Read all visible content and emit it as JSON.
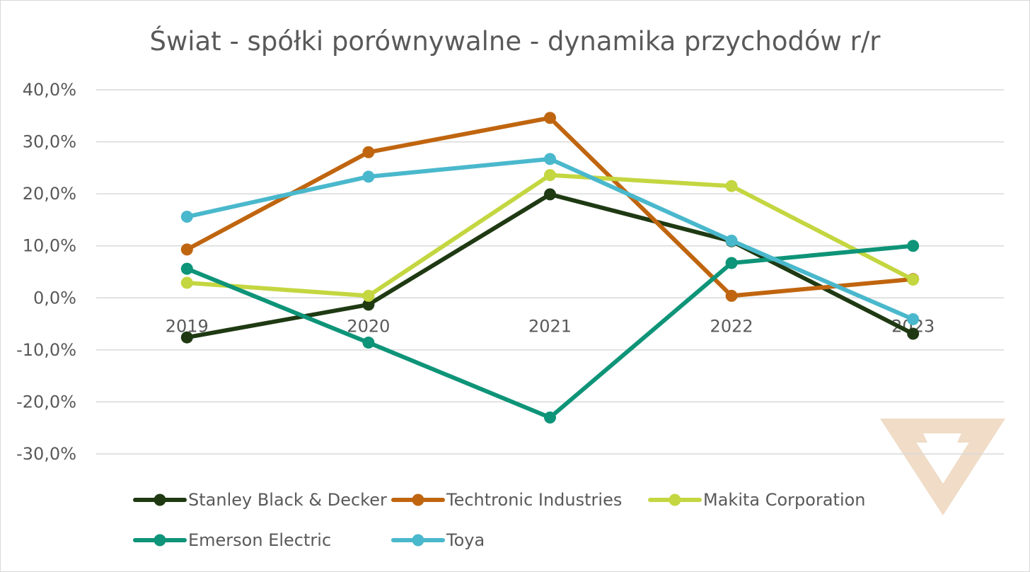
{
  "chart_data": {
    "type": "line",
    "title": "Świat - spółki porównywalne - dynamika przychodów r/r",
    "xlabel": "",
    "ylabel": "",
    "categories": [
      "2019",
      "2020",
      "2021",
      "2022",
      "2023"
    ],
    "ylim": [
      -0.3,
      0.4
    ],
    "ytick_values": [
      0.4,
      0.3,
      0.2,
      0.1,
      0.0,
      -0.1,
      -0.2,
      -0.3
    ],
    "ytick_labels": [
      "40,0%",
      "30,0%",
      "20,0%",
      "10,0%",
      "0,0%",
      "-10,0%",
      "-20,0%",
      "-30,0%"
    ],
    "grid": true,
    "legend_position": "bottom",
    "series": [
      {
        "name": "Stanley Black & Decker",
        "color": "#1f3a13",
        "values": [
          -0.076,
          -0.013,
          0.199,
          0.109,
          -0.069
        ]
      },
      {
        "name": "Techtronic Industries",
        "color": "#c0650f",
        "values": [
          0.093,
          0.28,
          0.346,
          0.004,
          0.036
        ]
      },
      {
        "name": "Makita Corporation",
        "color": "#c4d640",
        "values": [
          0.029,
          0.004,
          0.236,
          0.215,
          0.035
        ]
      },
      {
        "name": "Emerson Electric",
        "color": "#0e9478",
        "values": [
          0.056,
          -0.086,
          -0.23,
          0.067,
          0.1
        ]
      },
      {
        "name": "Toya",
        "color": "#4ab8cc",
        "values": [
          0.156,
          0.233,
          0.267,
          0.11,
          -0.041
        ]
      }
    ]
  },
  "watermark": {
    "icon": "logo-watermark",
    "color": "#f0dcc7"
  }
}
